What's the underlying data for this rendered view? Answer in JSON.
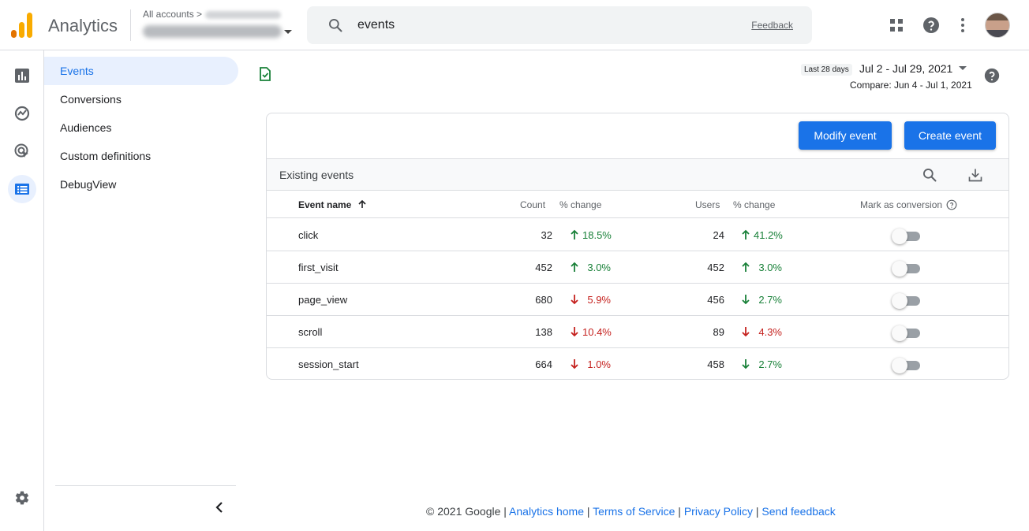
{
  "header": {
    "app_name": "Analytics",
    "all_accounts": "All accounts >",
    "search_value": "events",
    "feedback": "Feedback",
    "colors": {
      "logo_bars": [
        "#f9ab00",
        "#e37400",
        "#e37400"
      ]
    }
  },
  "subnav": {
    "items": [
      {
        "label": "Events",
        "active": true
      },
      {
        "label": "Conversions"
      },
      {
        "label": "Audiences"
      },
      {
        "label": "Custom definitions"
      },
      {
        "label": "DebugView"
      }
    ]
  },
  "daterange": {
    "chip": "Last 28 days",
    "range": "Jul 2 - Jul 29, 2021",
    "compare": "Compare: Jun 4 - Jul 1, 2021"
  },
  "card": {
    "modify_button": "Modify event",
    "create_button": "Create event",
    "existing_label": "Existing events",
    "columns": {
      "event_name": "Event name",
      "count": "Count",
      "count_change": "% change",
      "users": "Users",
      "users_change": "% change",
      "mark_conversion": "Mark as conversion"
    },
    "rows": [
      {
        "name": "click",
        "count": "32",
        "count_change": "18.5%",
        "count_dir": "up",
        "users": "24",
        "users_change": "41.2%",
        "users_dir": "up"
      },
      {
        "name": "first_visit",
        "count": "452",
        "count_change": "3.0%",
        "count_dir": "up",
        "users": "452",
        "users_change": "3.0%",
        "users_dir": "up"
      },
      {
        "name": "page_view",
        "count": "680",
        "count_change": "5.9%",
        "count_dir": "down",
        "users": "456",
        "users_change": "2.7%",
        "users_dir": "down"
      },
      {
        "name": "scroll",
        "count": "138",
        "count_change": "10.4%",
        "count_dir": "down",
        "users": "89",
        "users_change": "4.3%",
        "users_dir": "down"
      },
      {
        "name": "session_start",
        "count": "664",
        "count_change": "1.0%",
        "count_dir": "down",
        "users": "458",
        "users_change": "2.7%",
        "users_dir": "down"
      }
    ]
  },
  "footer": {
    "copyright": "© 2021 Google",
    "sep": "|",
    "links": [
      "Analytics home",
      "Terms of Service",
      "Privacy Policy",
      "Send feedback"
    ]
  }
}
